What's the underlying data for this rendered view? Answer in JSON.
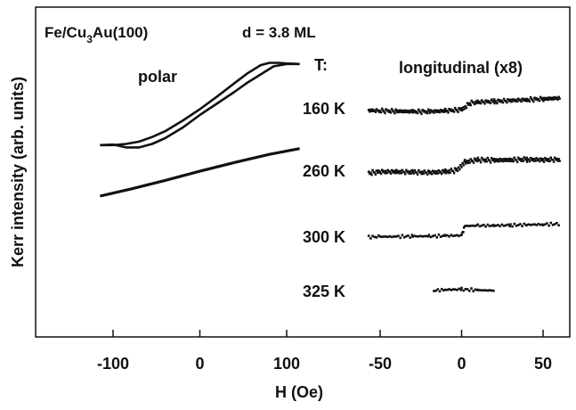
{
  "figure": {
    "title_sample": "Fe/Cu",
    "title_sub": "3",
    "title_rest": "Au(100)",
    "thickness": "d = 3.8 ML",
    "ylabel": "Kerr intensity (arb. units)",
    "xlabel": "H (Oe)",
    "temp_header": "T:",
    "polar_label": "polar",
    "longitudinal_label": "longitudinal (x8)",
    "ink": "#111111"
  },
  "chart_data": [
    {
      "type": "line",
      "name": "polar",
      "xlabel": "H (Oe)",
      "ylabel": "Kerr intensity (arb. units)",
      "xlim": [
        -120,
        120
      ],
      "x_ticks": [
        -100,
        0,
        100
      ],
      "x_tick_labels": [
        "-100",
        "0",
        "100"
      ],
      "grid": false,
      "series": [
        {
          "temperature": "160 K",
          "loop": true,
          "upper_branch": {
            "x": [
              -115,
              -100,
              -85,
              -70,
              -55,
              -40,
              -20,
              0,
              20,
              40,
              55,
              70,
              80,
              90,
              100,
              115
            ],
            "y": [
              0.78,
              0.78,
              0.8,
              0.84,
              0.92,
              1.02,
              1.2,
              1.4,
              1.62,
              1.85,
              2.02,
              2.16,
              2.2,
              2.2,
              2.19,
              2.18
            ]
          },
          "lower_branch": {
            "x": [
              -115,
              -100,
              -85,
              -70,
              -55,
              -40,
              -20,
              0,
              20,
              40,
              55,
              70,
              85,
              100,
              115
            ],
            "y": [
              0.78,
              0.79,
              0.74,
              0.74,
              0.8,
              0.9,
              1.08,
              1.3,
              1.5,
              1.7,
              1.86,
              2.0,
              2.14,
              2.18,
              2.18
            ]
          }
        },
        {
          "temperature": "260 K",
          "x": [
            -115,
            -80,
            -40,
            0,
            40,
            80,
            115
          ],
          "y": [
            -0.1,
            0.02,
            0.17,
            0.33,
            0.48,
            0.62,
            0.72
          ]
        }
      ]
    },
    {
      "type": "scatter",
      "name": "longitudinal (x8)",
      "xlabel": "H (Oe)",
      "xlim": [
        -60,
        65
      ],
      "x_ticks": [
        -50,
        0,
        50
      ],
      "x_tick_labels": [
        "-50",
        "0",
        "50"
      ],
      "grid": false,
      "series": [
        {
          "temperature": "160 K",
          "x": [
            -57,
            -50,
            -40,
            -30,
            -20,
            -10,
            0,
            5,
            10,
            20,
            30,
            40,
            50,
            60
          ],
          "y": [
            0.98,
            0.97,
            0.96,
            0.95,
            0.95,
            0.97,
            1.0,
            1.16,
            1.18,
            1.2,
            1.22,
            1.24,
            1.26,
            1.28
          ],
          "dy_lower_branch": -0.04
        },
        {
          "temperature": "260 K",
          "x": [
            -57,
            -50,
            -40,
            -30,
            -20,
            -10,
            -3,
            2,
            10,
            20,
            30,
            40,
            50,
            60
          ],
          "y": [
            0.85,
            0.88,
            0.88,
            0.87,
            0.86,
            0.88,
            0.92,
            1.12,
            1.17,
            1.16,
            1.17,
            1.18,
            1.17,
            1.18
          ],
          "dy_lower_branch": -0.05
        },
        {
          "temperature": "300 K",
          "x": [
            -57,
            -50,
            -40,
            -30,
            -20,
            -10,
            0,
            2,
            10,
            20,
            30,
            40,
            50,
            60
          ],
          "y": [
            0.27,
            0.28,
            0.28,
            0.29,
            0.29,
            0.3,
            0.31,
            0.54,
            0.55,
            0.55,
            0.56,
            0.57,
            0.58,
            0.59
          ],
          "dy_lower_branch": 0
        },
        {
          "temperature": "325 K",
          "x": [
            -17,
            -10,
            0,
            10,
            20
          ],
          "y": [
            0.0,
            0.02,
            0.03,
            0.01,
            0.0
          ],
          "dy_lower_branch": 0
        }
      ]
    }
  ]
}
